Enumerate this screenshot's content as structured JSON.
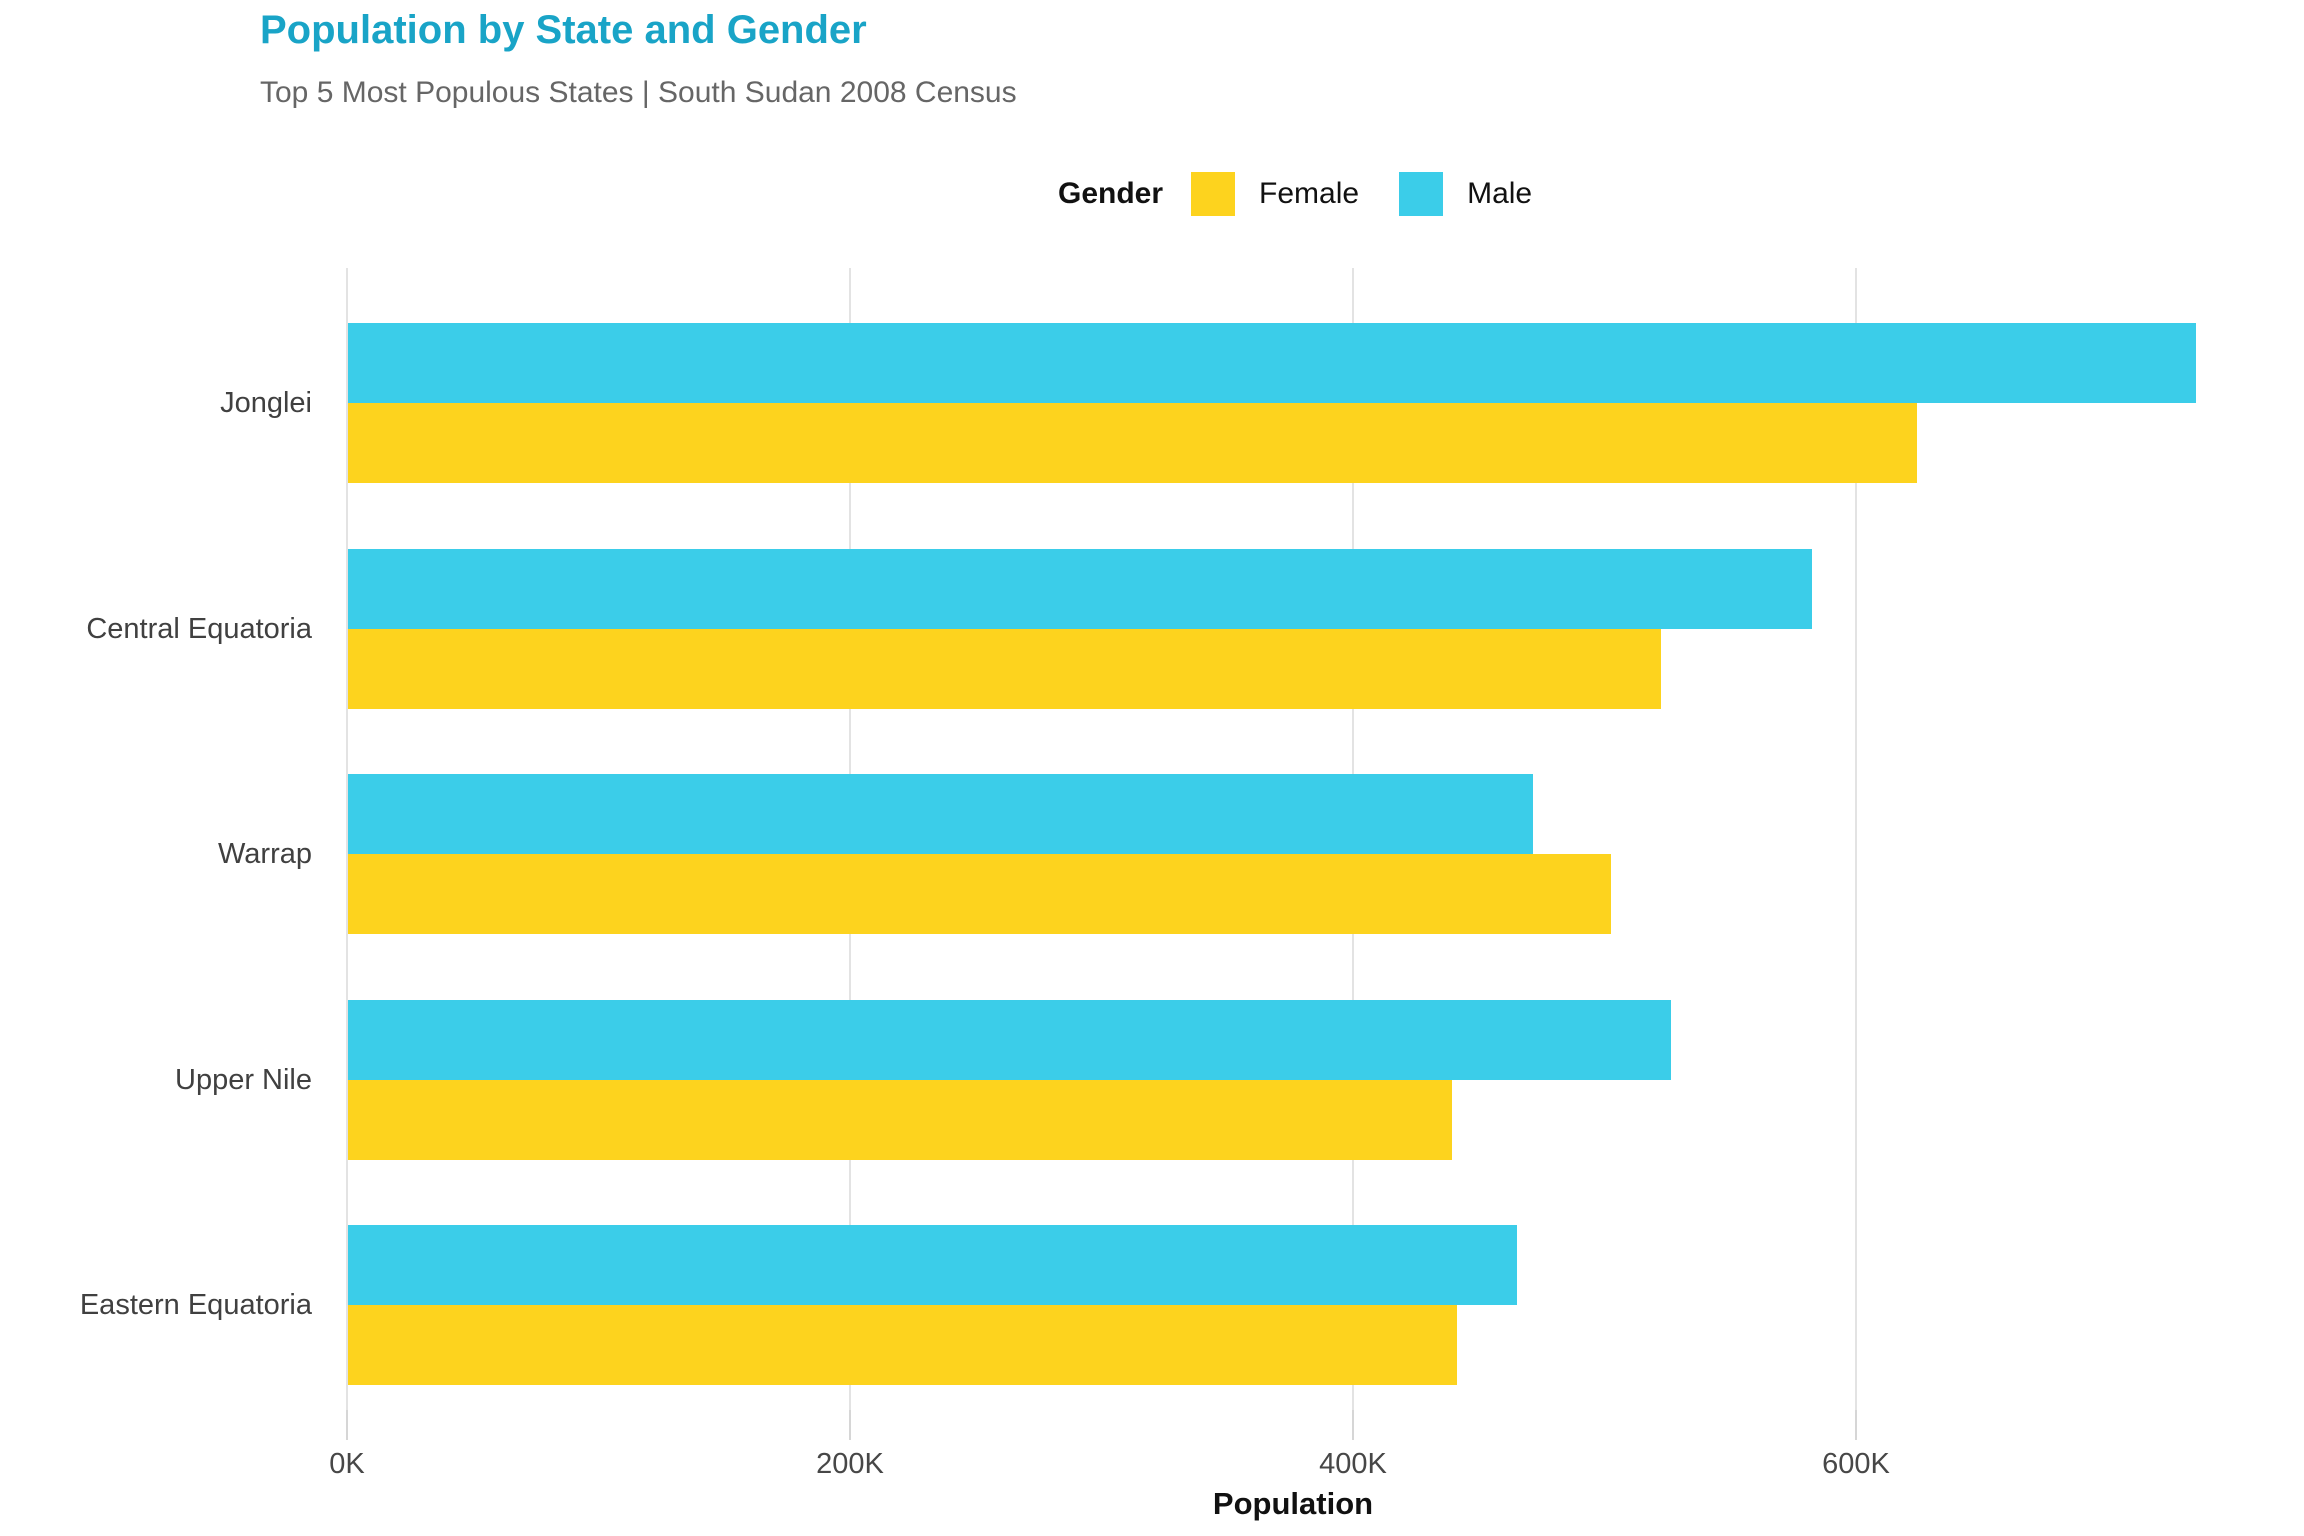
{
  "header": {
    "title": "Population by State and Gender",
    "subtitle": "Top 5 Most Populous States | South Sudan 2008 Census"
  },
  "legend": {
    "title": "Gender",
    "items": [
      {
        "label": "Female",
        "color": "#FDD31E"
      },
      {
        "label": "Male",
        "color": "#3BCDE9"
      }
    ]
  },
  "chart_data": {
    "type": "bar",
    "orientation": "horizontal",
    "title": "Population by State and Gender",
    "subtitle": "Top 5 Most Populous States | South Sudan 2008 Census",
    "xlabel": "Population",
    "ylabel": "",
    "categories": [
      "Jonglei",
      "Central Equatoria",
      "Warrap",
      "Upper Nile",
      "Eastern Equatoria"
    ],
    "series": [
      {
        "name": "Male",
        "color": "#3BCDE9",
        "values": [
          735000,
          582000,
          471000,
          526000,
          465000
        ]
      },
      {
        "name": "Female",
        "color": "#FDD31E",
        "values": [
          624000,
          522000,
          502000,
          439000,
          441000
        ]
      }
    ],
    "x_ticks": [
      {
        "value": 0,
        "label": "0K"
      },
      {
        "value": 200000,
        "label": "200K"
      },
      {
        "value": 400000,
        "label": "400K"
      },
      {
        "value": 600000,
        "label": "600K"
      }
    ],
    "xlim": [
      0,
      752700
    ],
    "grid": "vertical-only",
    "legend_title": "Gender",
    "legend_position": "top"
  },
  "colors": {
    "title_accent": "#19A4C7",
    "subtitle_text": "#666666",
    "axis_text": "#474747",
    "category_text": "#404040",
    "male_bar": "#3BCDE9",
    "female_bar": "#FDD31E",
    "gridline": "#E3E3E3",
    "tick_mark": "#D6D6D6"
  }
}
